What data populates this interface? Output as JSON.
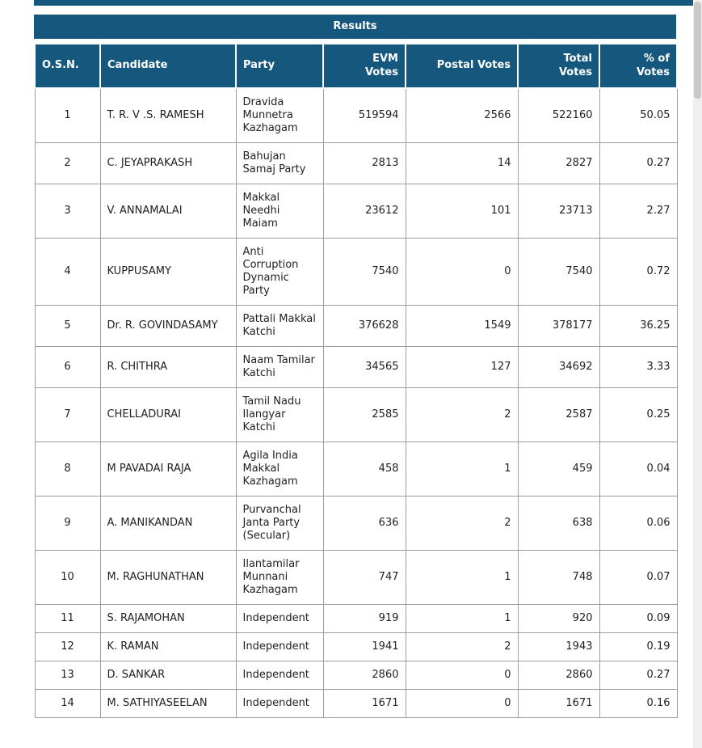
{
  "theme": {
    "header_bg": "#15577D",
    "header_text": "#FFFFFF",
    "grid_border": "#9C9C9C",
    "cell_text": "#212121",
    "page_bg": "#FFFFFF",
    "scrollbar_track": "#EFEFEF",
    "scrollbar_thumb": "#C9C9C9"
  },
  "results": {
    "title": "Results",
    "columns": [
      {
        "key": "osn",
        "label": "O.S.N."
      },
      {
        "key": "candidate",
        "label": "Candidate"
      },
      {
        "key": "party",
        "label": "Party"
      },
      {
        "key": "evm_votes",
        "label": "EVM\nVotes"
      },
      {
        "key": "postal_votes",
        "label": "Postal Votes"
      },
      {
        "key": "total_votes",
        "label": "Total\nVotes"
      },
      {
        "key": "pct_of_votes",
        "label": "% of\nVotes"
      }
    ],
    "rows": [
      {
        "osn": "1",
        "candidate": "T. R. V .S. RAMESH",
        "party": "Dravida Munnetra Kazhagam",
        "evm_votes": "519594",
        "postal_votes": "2566",
        "total_votes": "522160",
        "pct_of_votes": "50.05"
      },
      {
        "osn": "2",
        "candidate": "C. JEYAPRAKASH",
        "party": "Bahujan Samaj Party",
        "evm_votes": "2813",
        "postal_votes": "14",
        "total_votes": "2827",
        "pct_of_votes": "0.27"
      },
      {
        "osn": "3",
        "candidate": "V. ANNAMALAI",
        "party": "Makkal Needhi Maiam",
        "evm_votes": "23612",
        "postal_votes": "101",
        "total_votes": "23713",
        "pct_of_votes": "2.27"
      },
      {
        "osn": "4",
        "candidate": "KUPPUSAMY",
        "party": "Anti Corruption Dynamic Party",
        "evm_votes": "7540",
        "postal_votes": "0",
        "total_votes": "7540",
        "pct_of_votes": "0.72"
      },
      {
        "osn": "5",
        "candidate": "Dr. R. GOVINDASAMY",
        "party": "Pattali Makkal Katchi",
        "evm_votes": "376628",
        "postal_votes": "1549",
        "total_votes": "378177",
        "pct_of_votes": "36.25"
      },
      {
        "osn": "6",
        "candidate": "R. CHITHRA",
        "party": "Naam Tamilar Katchi",
        "evm_votes": "34565",
        "postal_votes": "127",
        "total_votes": "34692",
        "pct_of_votes": "3.33"
      },
      {
        "osn": "7",
        "candidate": "CHELLADURAI",
        "party": "Tamil Nadu Ilangyar Katchi",
        "evm_votes": "2585",
        "postal_votes": "2",
        "total_votes": "2587",
        "pct_of_votes": "0.25"
      },
      {
        "osn": "8",
        "candidate": "M PAVADAI RAJA",
        "party": "Agila India Makkal Kazhagam",
        "evm_votes": "458",
        "postal_votes": "1",
        "total_votes": "459",
        "pct_of_votes": "0.04"
      },
      {
        "osn": "9",
        "candidate": "A. MANIKANDAN",
        "party": "Purvanchal Janta Party (Secular)",
        "evm_votes": "636",
        "postal_votes": "2",
        "total_votes": "638",
        "pct_of_votes": "0.06"
      },
      {
        "osn": "10",
        "candidate": "M. RAGHUNATHAN",
        "party": "Ilantamilar Munnani Kazhagam",
        "evm_votes": "747",
        "postal_votes": "1",
        "total_votes": "748",
        "pct_of_votes": "0.07"
      },
      {
        "osn": "11",
        "candidate": "S. RAJAMOHAN",
        "party": "Independent",
        "evm_votes": "919",
        "postal_votes": "1",
        "total_votes": "920",
        "pct_of_votes": "0.09"
      },
      {
        "osn": "12",
        "candidate": "K. RAMAN",
        "party": "Independent",
        "evm_votes": "1941",
        "postal_votes": "2",
        "total_votes": "1943",
        "pct_of_votes": "0.19"
      },
      {
        "osn": "13",
        "candidate": "D. SANKAR",
        "party": "Independent",
        "evm_votes": "2860",
        "postal_votes": "0",
        "total_votes": "2860",
        "pct_of_votes": "0.27"
      },
      {
        "osn": "14",
        "candidate": "M. SATHIYASEELAN",
        "party": "Independent",
        "evm_votes": "1671",
        "postal_votes": "0",
        "total_votes": "1671",
        "pct_of_votes": "0.16"
      }
    ]
  }
}
